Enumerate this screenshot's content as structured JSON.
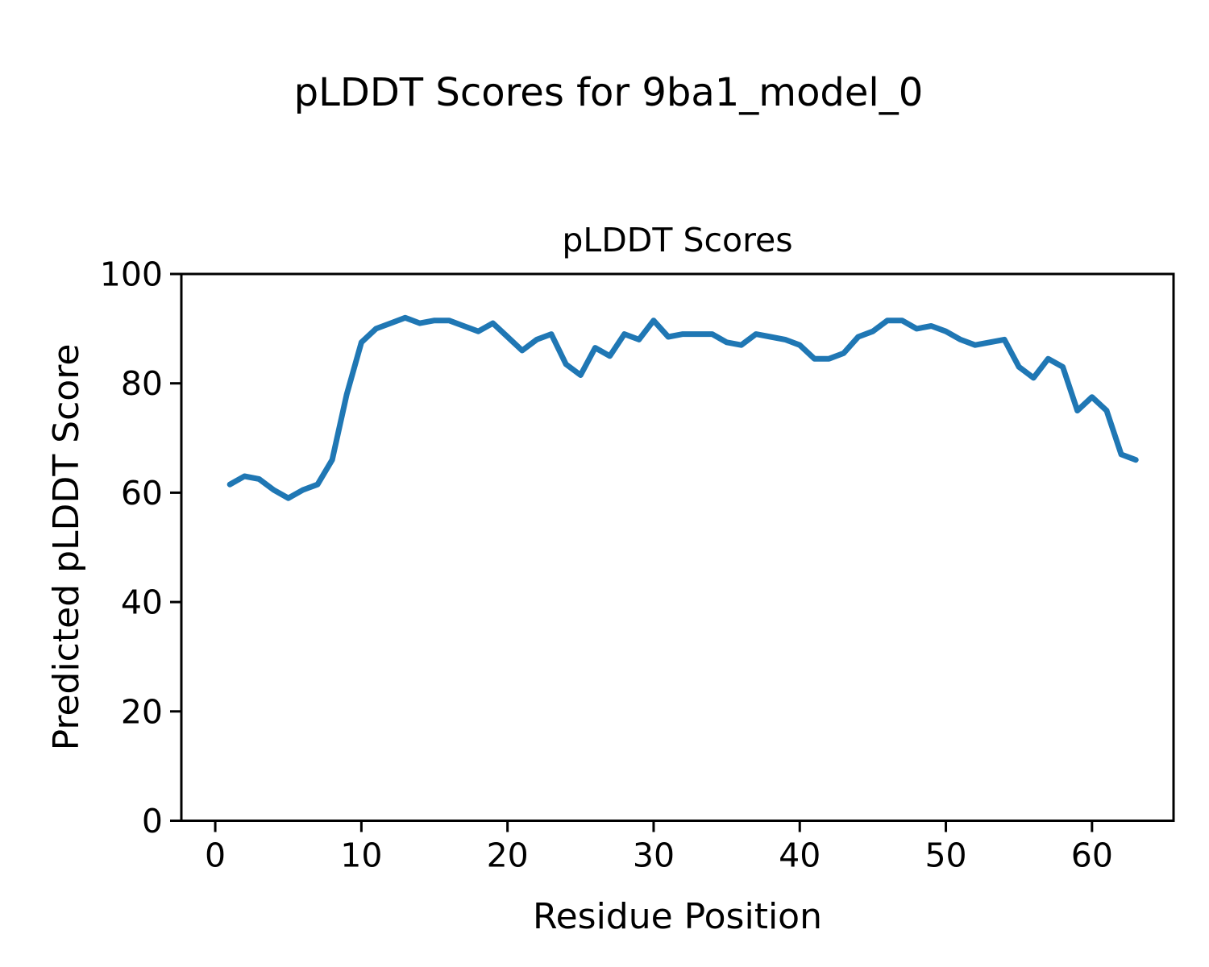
{
  "figure": {
    "suptitle": "pLDDT Scores for 9ba1_model_0",
    "background_color": "#ffffff"
  },
  "chart_data": {
    "type": "line",
    "title": "pLDDT Scores",
    "xlabel": "Residue Position",
    "ylabel": "Predicted pLDDT Score",
    "x": [
      1,
      2,
      3,
      4,
      5,
      6,
      7,
      8,
      9,
      10,
      11,
      12,
      13,
      14,
      15,
      16,
      17,
      18,
      19,
      20,
      21,
      22,
      23,
      24,
      25,
      26,
      27,
      28,
      29,
      30,
      31,
      32,
      33,
      34,
      35,
      36,
      37,
      38,
      39,
      40,
      41,
      42,
      43,
      44,
      45,
      46,
      47,
      48,
      49,
      50,
      51,
      52,
      53,
      54,
      55,
      56,
      57,
      58,
      59,
      60,
      61,
      62,
      63
    ],
    "series": [
      {
        "name": "pLDDT",
        "color": "#1f77b4",
        "values": [
          61.5,
          63,
          62.5,
          60.5,
          59,
          60.5,
          61.5,
          66,
          78,
          87.5,
          90,
          91,
          92,
          91,
          91.5,
          91.5,
          90.5,
          89.5,
          91,
          88.5,
          86,
          88,
          89,
          83.5,
          81.5,
          86.5,
          85,
          89,
          88,
          91.5,
          88.5,
          89,
          89,
          89,
          87.5,
          87,
          89,
          88.5,
          88,
          87,
          84.5,
          84.5,
          85.5,
          88.5,
          89.5,
          91.5,
          91.5,
          90,
          90.5,
          89.5,
          88,
          87,
          87.5,
          88,
          83,
          81,
          84.5,
          83,
          75,
          77.5,
          75,
          67,
          66
        ]
      }
    ],
    "xlim": [
      -2.32,
      65.58
    ],
    "ylim": [
      0,
      100
    ],
    "xticks": [
      0,
      10,
      20,
      30,
      40,
      50,
      60
    ],
    "yticks": [
      0,
      20,
      40,
      60,
      80,
      100
    ],
    "grid": false,
    "legend": "none",
    "spine_color": "#000000",
    "tick_color": "#000000"
  }
}
